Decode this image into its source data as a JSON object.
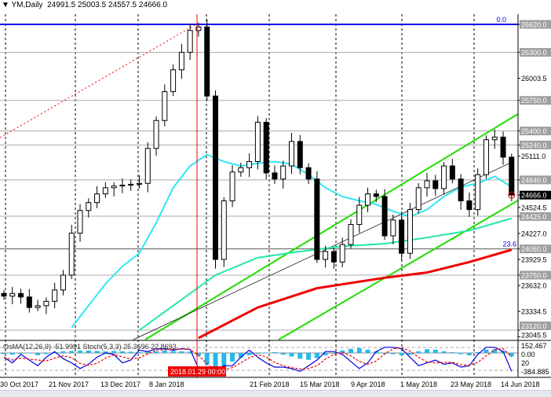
{
  "header": {
    "symbol": "YM,Daily",
    "open": "24991.5",
    "high": "25003.5",
    "low": "24557.5",
    "close": "24666.0",
    "icon": "triangle-down-icon"
  },
  "oscillator_label": "OsMA(12,26,9) -51.9991 Stoch(5,3,3) 25.3696 22.8693",
  "crosshair_date": "2018.01.29 00:00",
  "colors": {
    "bull": "#ffffff",
    "bear": "#000000",
    "ma_fast": "#33e6f0",
    "ma_mid": "#22e8a8",
    "ma_slow": "#ee0000",
    "channel": "#22dd00",
    "fib": "#0000ee",
    "crosshair": "#ee0000",
    "osma": "#22bbee",
    "stoch_main": "#0000dd",
    "stoch_signal": "#ee0000"
  },
  "chart_data": {
    "type": "candlestick",
    "ylim": [
      23045.5,
      26800
    ],
    "price_axis": [
      "26620.0",
      "26300.0",
      "26003.5",
      "25750.0",
      "25400.0",
      "25240.0",
      "25111.0",
      "24840.0",
      "24666.0",
      "24524.5",
      "24425.0",
      "24227.0",
      "24050.0",
      "23929.5",
      "23750.0",
      "23632.0",
      "23334.5",
      "23120.0",
      "23045.5"
    ],
    "highlighted_levels": [
      "26620.0",
      "26300.0",
      "25750.0",
      "25400.0",
      "25240.0",
      "24840.0",
      "24425.0",
      "24050.0",
      "23750.0",
      "23120.0"
    ],
    "current_price": "24666.0",
    "fib_labels": {
      "top": "0.0",
      "level": "23.6"
    },
    "date_labels": [
      "30 Oct 2017",
      "21 Nov 2017",
      "13 Dec 2017",
      "8 Jan 2018",
      "21 Feb 2018",
      "15 Mar 2018",
      "9 Apr 2018",
      "1 May 2018",
      "23 May 2018",
      "14 Jun 2018"
    ],
    "closes": [
      23510,
      23540,
      23500,
      23380,
      23400,
      23450,
      23580,
      23750,
      24230,
      24490,
      24580,
      24680,
      24750,
      24770,
      24780,
      24790,
      24800,
      25200,
      25520,
      25850,
      26100,
      26300,
      26550,
      26590,
      25800,
      23930,
      24600,
      24930,
      24980,
      25050,
      25500,
      24920,
      24850,
      25000,
      25280,
      24980,
      24850,
      23930,
      24020,
      23900,
      24100,
      24330,
      24550,
      24680,
      24650,
      24200,
      24380,
      24000,
      24500,
      24750,
      24830,
      24740,
      25000,
      24850,
      24600,
      24500,
      24900,
      25300,
      25330,
      25100,
      24666
    ],
    "ma_fast": [
      [
        8,
        23150
      ],
      [
        10,
        23400
      ],
      [
        12,
        23650
      ],
      [
        14,
        23850
      ],
      [
        16,
        24000
      ],
      [
        18,
        24350
      ],
      [
        20,
        24750
      ],
      [
        22,
        25000
      ],
      [
        24,
        25130
      ],
      [
        26,
        25050
      ],
      [
        28,
        25000
      ],
      [
        30,
        25030
      ],
      [
        32,
        25050
      ],
      [
        34,
        25020
      ],
      [
        36,
        24900
      ],
      [
        38,
        24750
      ],
      [
        40,
        24650
      ],
      [
        42,
        24600
      ],
      [
        44,
        24560
      ],
      [
        46,
        24480
      ],
      [
        48,
        24420
      ],
      [
        50,
        24500
      ],
      [
        52,
        24650
      ],
      [
        54,
        24760
      ],
      [
        56,
        24800
      ],
      [
        58,
        24880
      ],
      [
        60,
        24760
      ]
    ],
    "ma_mid": [
      [
        16,
        23120
      ],
      [
        20,
        23400
      ],
      [
        25,
        23750
      ],
      [
        30,
        23950
      ],
      [
        35,
        24020
      ],
      [
        40,
        24080
      ],
      [
        45,
        24110
      ],
      [
        50,
        24180
      ],
      [
        55,
        24260
      ],
      [
        60,
        24400
      ]
    ],
    "ma_slow": [
      [
        23,
        23030
      ],
      [
        30,
        23380
      ],
      [
        37,
        23600
      ],
      [
        45,
        23720
      ],
      [
        50,
        23780
      ],
      [
        55,
        23900
      ],
      [
        60,
        24040
      ]
    ],
    "oscillator_axis": [
      "152.467",
      "0.00",
      "20",
      "-384.885"
    ],
    "stoch": [
      60,
      40,
      70,
      50,
      30,
      60,
      80,
      55,
      40,
      20,
      35,
      60,
      75,
      70,
      40,
      50,
      85,
      80,
      90,
      90,
      85,
      90,
      88,
      20,
      5,
      10,
      30,
      30,
      60,
      85,
      60,
      40,
      25,
      25,
      20,
      10,
      30,
      50,
      80,
      80,
      70,
      45,
      20,
      40,
      80,
      95,
      95,
      90,
      60,
      30,
      40,
      50,
      35,
      40,
      25,
      30,
      70,
      95,
      95,
      80,
      10
    ],
    "osma": [
      -20,
      -30,
      -10,
      10,
      -40,
      -20,
      20,
      40,
      50,
      60,
      60,
      50,
      40,
      50,
      40,
      30,
      20,
      30,
      40,
      60,
      50,
      40,
      30,
      -50,
      -200,
      -300,
      -250,
      -150,
      -80,
      -40,
      -10,
      10,
      20,
      -30,
      -60,
      -100,
      -120,
      -90,
      -40,
      0,
      60,
      100,
      120,
      80,
      40,
      0,
      -20,
      -40,
      -30,
      40,
      90,
      80,
      40,
      20,
      -20,
      -40,
      20,
      80,
      90,
      50,
      -60
    ]
  }
}
